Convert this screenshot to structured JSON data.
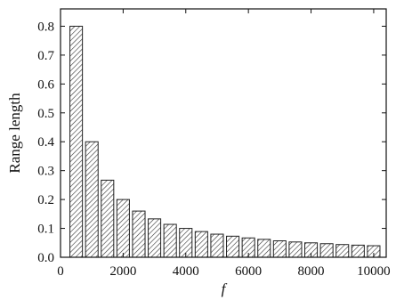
{
  "chart_data": {
    "type": "bar",
    "title": "",
    "xlabel": "f",
    "ylabel": "Range length",
    "xlim": [
      0,
      10400
    ],
    "ylim": [
      0,
      0.86
    ],
    "x_ticks": [
      0,
      2000,
      4000,
      6000,
      8000,
      10000
    ],
    "x_tick_labels": [
      "0",
      "2000",
      "4000",
      "6000",
      "8000",
      "10000"
    ],
    "y_ticks": [
      0,
      0.1,
      0.2,
      0.3,
      0.4,
      0.5,
      0.6,
      0.7,
      0.8
    ],
    "y_tick_labels": [
      "0.0",
      "0.1",
      "0.2",
      "0.3",
      "0.4",
      "0.5",
      "0.6",
      "0.7",
      "0.8"
    ],
    "x": [
      500,
      1000,
      1500,
      2000,
      2500,
      3000,
      3500,
      4000,
      4500,
      5000,
      5500,
      6000,
      6500,
      7000,
      7500,
      8000,
      8500,
      9000,
      9500,
      10000
    ],
    "values": [
      0.8,
      0.4,
      0.267,
      0.2,
      0.16,
      0.133,
      0.114,
      0.1,
      0.089,
      0.08,
      0.073,
      0.067,
      0.062,
      0.057,
      0.053,
      0.05,
      0.047,
      0.044,
      0.042,
      0.04
    ],
    "bar_width": 400,
    "bar_fill": "hatched",
    "grid": false,
    "legend": "none"
  },
  "colors": {
    "bar_stroke": "#222222",
    "hatch": "#333333",
    "axis": "#111111"
  }
}
